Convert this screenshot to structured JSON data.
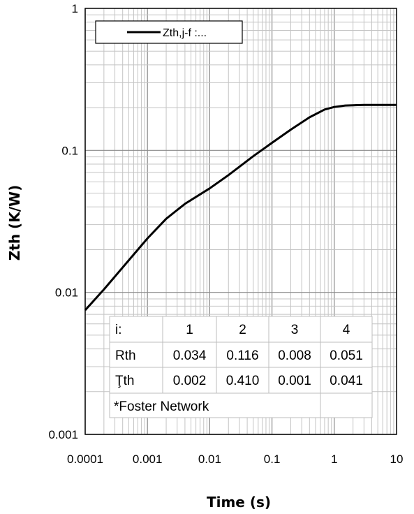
{
  "chart_data": {
    "type": "line",
    "xlabel": "Time (s)",
    "ylabel": "Zth (K/W)",
    "x_scale": "log",
    "y_scale": "log",
    "xlim": [
      0.0001,
      10
    ],
    "ylim": [
      0.001,
      1
    ],
    "grid": true,
    "x_ticks": [
      "0.0001",
      "0.001",
      "0.01",
      "0.1",
      "1",
      "10"
    ],
    "y_ticks": [
      "0.001",
      "0.01",
      "0.1",
      "1"
    ],
    "legend": {
      "placement": "top-left"
    },
    "series": [
      {
        "name": "Zth,j-f :...",
        "color": "#000000",
        "x": [
          0.0001,
          0.0002,
          0.0005,
          0.001,
          0.002,
          0.004,
          0.007,
          0.01,
          0.02,
          0.05,
          0.1,
          0.2,
          0.4,
          0.7,
          1,
          1.5,
          2,
          3,
          5,
          10
        ],
        "y": [
          0.0075,
          0.0105,
          0.0168,
          0.024,
          0.033,
          0.042,
          0.049,
          0.054,
          0.067,
          0.091,
          0.113,
          0.14,
          0.171,
          0.194,
          0.202,
          0.207,
          0.208,
          0.209,
          0.209,
          0.209
        ]
      }
    ]
  },
  "foster_table": {
    "header": [
      "i:",
      "1",
      "2",
      "3",
      "4"
    ],
    "rows": [
      [
        "Rth",
        "0.034",
        "0.116",
        "0.008",
        "0.051"
      ],
      [
        "Ţth",
        "0.002",
        "0.410",
        "0.001",
        "0.041"
      ]
    ],
    "note": "*Foster Network"
  }
}
